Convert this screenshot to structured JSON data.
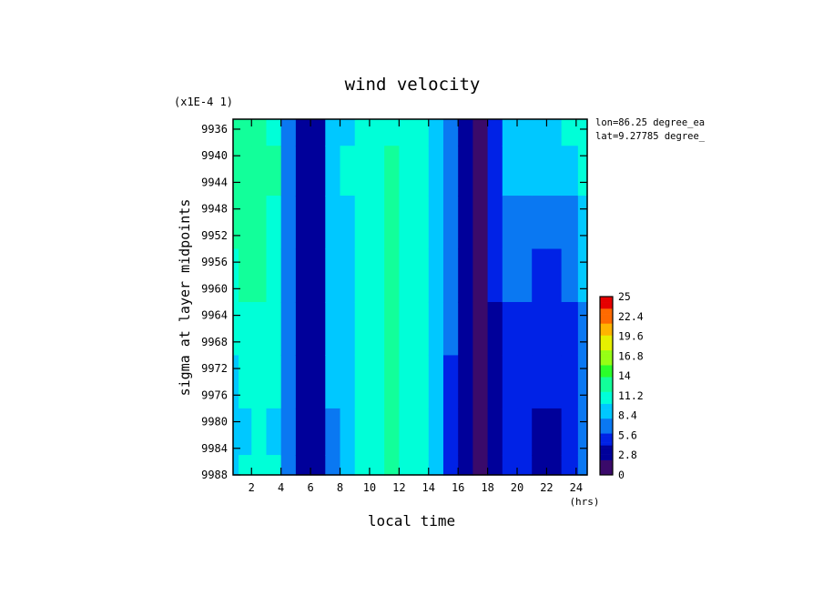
{
  "chart_data": {
    "type": "heatmap",
    "title": "wind velocity",
    "xlabel": "local time",
    "ylabel": "sigma at layer midpoints",
    "x_unit_label": "(hrs)",
    "y_scale_label": "(x1E-4 1)",
    "annotations": [
      "lon=86.25 degree_ea",
      "lat=9.27785 degree_"
    ],
    "x_ticks": [
      2,
      4,
      6,
      8,
      10,
      12,
      14,
      16,
      18,
      20,
      22,
      24
    ],
    "y_ticks": [
      9936,
      9940,
      9944,
      9948,
      9952,
      9956,
      9960,
      9964,
      9968,
      9972,
      9976,
      9980,
      9984,
      9988
    ],
    "xlim": [
      0.75,
      24.75
    ],
    "ylim": [
      9988,
      9934.5
    ],
    "x": [
      0.75,
      1.5,
      2.5,
      3.5,
      4.5,
      5.5,
      6.5,
      7.5,
      8.5,
      9.5,
      10.5,
      11.5,
      12.5,
      13.5,
      14.5,
      15.5,
      16.5,
      17.5,
      18.5,
      19.5,
      20.5,
      21.5,
      22.5,
      23.5,
      24.75
    ],
    "y": [
      9935,
      9942,
      9950,
      9958,
      9966,
      9974,
      9982,
      9988
    ],
    "values": [
      [
        11.6,
        11.8,
        11.9,
        11.3,
        10.8,
        9.5,
        8.9,
        9.2
      ],
      [
        11.9,
        12.0,
        12.2,
        11.6,
        11.1,
        10.1,
        9.6,
        10.0
      ],
      [
        12.0,
        12.2,
        12.3,
        11.9,
        11.3,
        10.5,
        10.0,
        10.3
      ],
      [
        11.4,
        11.6,
        11.5,
        11.2,
        10.6,
        9.9,
        9.5,
        9.7
      ],
      [
        7.2,
        7.4,
        7.3,
        7.0,
        6.6,
        6.1,
        5.8,
        5.9
      ],
      [
        2.6,
        2.7,
        2.6,
        2.5,
        2.4,
        2.3,
        2.2,
        2.3
      ],
      [
        3.5,
        3.7,
        3.7,
        3.6,
        3.4,
        3.1,
        3.0,
        3.1
      ],
      [
        7.9,
        8.0,
        8.0,
        8.2,
        8.3,
        8.1,
        7.4,
        7.0
      ],
      [
        9.6,
        9.7,
        9.6,
        9.6,
        9.4,
        9.2,
        9.0,
        9.1
      ],
      [
        10.4,
        10.5,
        10.4,
        10.3,
        10.2,
        10.1,
        10.0,
        10.0
      ],
      [
        11.1,
        11.2,
        11.3,
        11.2,
        11.1,
        11.1,
        11.0,
        11.1
      ],
      [
        11.5,
        11.6,
        11.7,
        11.7,
        11.6,
        11.6,
        11.6,
        11.7
      ],
      [
        11.3,
        11.4,
        11.5,
        11.5,
        11.5,
        11.4,
        11.4,
        11.5
      ],
      [
        10.2,
        10.3,
        10.4,
        10.4,
        10.4,
        10.3,
        10.2,
        10.3
      ],
      [
        8.6,
        8.7,
        8.7,
        8.8,
        8.7,
        8.6,
        8.5,
        8.4
      ],
      [
        5.9,
        6.0,
        6.0,
        6.0,
        5.9,
        5.7,
        5.6,
        5.5
      ],
      [
        2.6,
        2.6,
        2.7,
        2.6,
        2.5,
        2.4,
        2.2,
        2.1
      ],
      [
        1.7,
        1.8,
        1.8,
        1.7,
        1.5,
        1.2,
        0.8,
        0.6
      ],
      [
        4.9,
        5.0,
        4.5,
        4.0,
        3.7,
        3.5,
        3.3,
        3.2
      ],
      [
        8.8,
        8.5,
        7.2,
        6.4,
        5.7,
        5.0,
        4.3,
        4.1
      ],
      [
        9.3,
        8.7,
        7.0,
        5.9,
        5.3,
        4.7,
        4.0,
        3.9
      ],
      [
        9.0,
        7.8,
        5.8,
        4.9,
        4.4,
        4.0,
        3.5,
        3.3
      ],
      [
        9.5,
        8.2,
        6.0,
        4.8,
        4.5,
        4.1,
        3.6,
        3.4
      ],
      [
        10.1,
        9.1,
        7.3,
        6.2,
        5.7,
        5.2,
        4.8,
        4.6
      ],
      [
        11.2,
        10.6,
        9.2,
        8.1,
        7.6,
        7.1,
        6.8,
        6.7
      ]
    ],
    "colorbar": {
      "ticks": [
        "25",
        "22.4",
        "19.6",
        "16.8",
        "14",
        "11.2",
        "8.4",
        "5.6",
        "2.8",
        "0"
      ],
      "min": 0,
      "max": 25,
      "colors": [
        "#3a0a6a",
        "#00009a",
        "#0022e6",
        "#0a78f2",
        "#00c8ff",
        "#00ffd8",
        "#12ff9a",
        "#2aff2a",
        "#96ff14",
        "#e6f000",
        "#ffb400",
        "#ff6a00",
        "#e60000"
      ]
    }
  }
}
